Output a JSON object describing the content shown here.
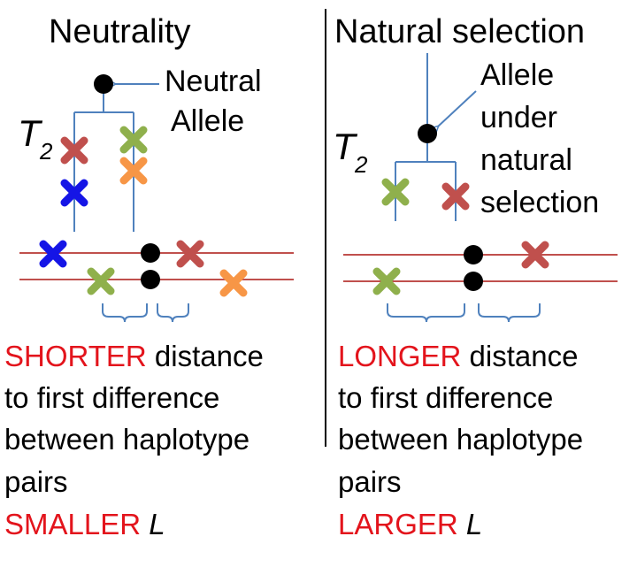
{
  "left": {
    "title": "Neutrality",
    "allele_label_1": "Neutral",
    "allele_label_2": "Allele",
    "time_symbol": "T",
    "time_subscript": "2",
    "caption": {
      "line1_red": "SHORTER",
      "line1_rest": " distance",
      "line2": "to first difference",
      "line3": "between haplotype",
      "line4": "pairs",
      "line5_red": "SMALLER ",
      "line5_italic": "L"
    }
  },
  "right": {
    "title": "Natural selection",
    "allele_label_1": "Allele",
    "allele_label_2": "under",
    "allele_label_3": "natural",
    "allele_label_4": "selection",
    "time_symbol": "T",
    "time_subscript": "2",
    "caption": {
      "line1_red": "LONGER",
      "line1_rest": " distance",
      "line2": "to first difference",
      "line3": "between haplotype",
      "line4": "pairs",
      "line5_red": "LARGER ",
      "line5_italic": "L"
    }
  },
  "colors": {
    "tree_line": "#4f81bd",
    "chromosome_line": "#c0504d",
    "caption_red": "#e3141c",
    "mut_red": "#c0504d",
    "mut_green": "#8fb04c",
    "mut_orange": "#f79646",
    "mut_blue": "#1515e6"
  }
}
